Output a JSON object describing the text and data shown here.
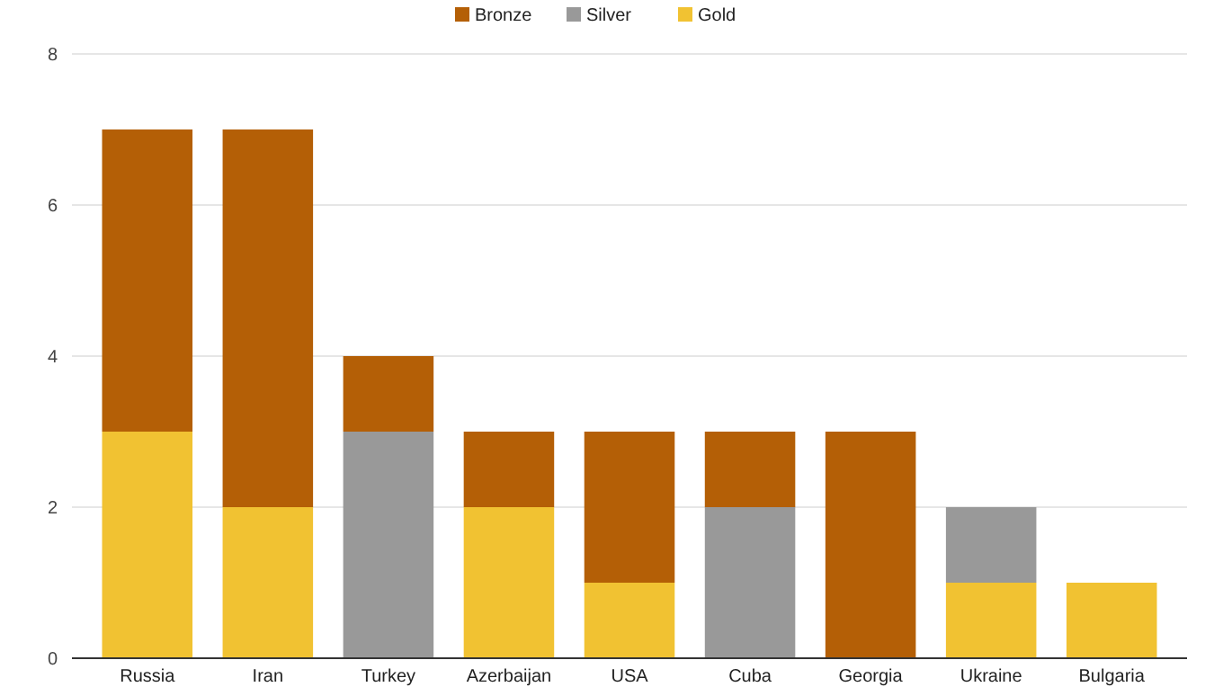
{
  "chart_data": {
    "type": "bar",
    "stacked": true,
    "categories": [
      "Russia",
      "Iran",
      "Turkey",
      "Azerbaijan",
      "USA",
      "Cuba",
      "Georgia",
      "Ukraine",
      "Bulgaria"
    ],
    "series": [
      {
        "name": "Gold",
        "color": "#f1c232",
        "values": [
          3,
          2,
          0,
          2,
          1,
          0,
          0,
          1,
          1
        ]
      },
      {
        "name": "Silver",
        "color": "#999999",
        "values": [
          0,
          0,
          3,
          0,
          0,
          2,
          0,
          1,
          0
        ]
      },
      {
        "name": "Bronze",
        "color": "#b45f06",
        "values": [
          4,
          5,
          1,
          1,
          2,
          1,
          3,
          0,
          0
        ]
      }
    ],
    "ylim": [
      0,
      8
    ],
    "yticks": [
      0,
      2,
      4,
      6,
      8
    ],
    "grid": "y",
    "legend": "top"
  }
}
